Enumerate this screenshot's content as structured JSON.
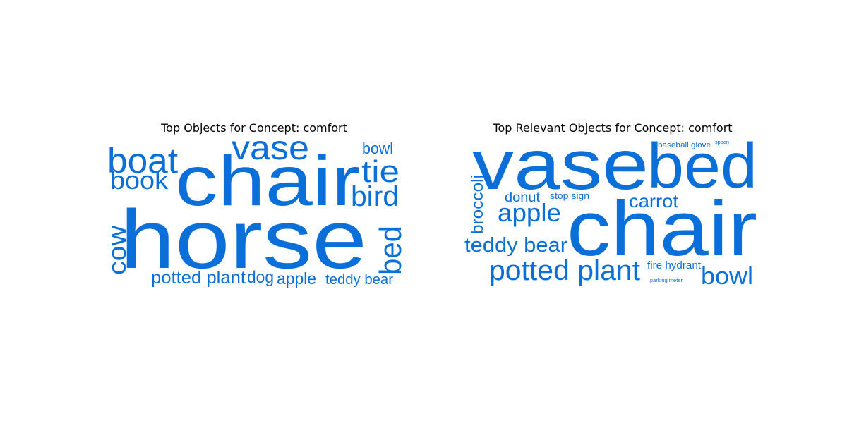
{
  "chart_data": [
    {
      "type": "wordcloud",
      "title": "Top Objects for Concept: comfort",
      "color": "#0a6fd8",
      "words": [
        "horse",
        "chair",
        "vase",
        "boat",
        "book",
        "tie",
        "bird",
        "bowl",
        "cow",
        "bed",
        "potted plant",
        "dog",
        "apple",
        "teddy bear"
      ]
    },
    {
      "type": "wordcloud",
      "title": "Top Relevant Objects for Concept: comfort",
      "color": "#0a6fd8",
      "words": [
        "vase",
        "bed",
        "chair",
        "potted plant",
        "teddy bear",
        "apple",
        "bowl",
        "carrot",
        "broccoli",
        "donut",
        "stop sign",
        "fire hydrant",
        "baseball glove",
        "spoon",
        "parking meter"
      ]
    }
  ]
}
